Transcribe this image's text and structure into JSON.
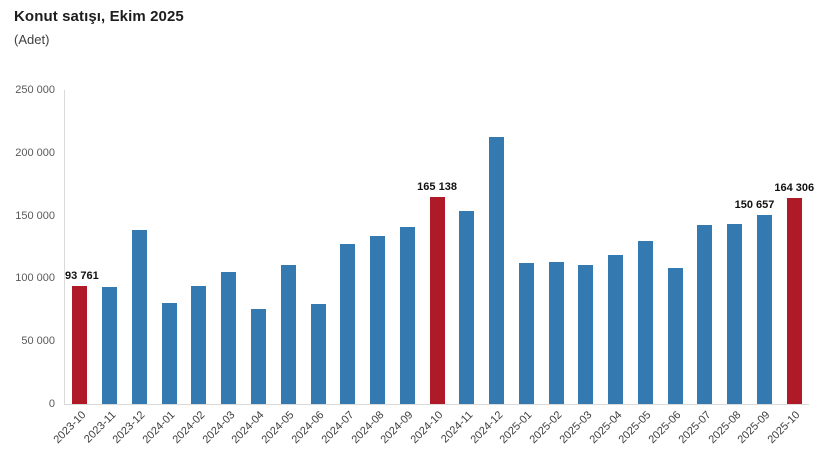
{
  "chart_data": {
    "type": "bar",
    "title": "Konut satışı, Ekim 2025",
    "subtitle": "(Adet)",
    "xlabel": "",
    "ylabel": "",
    "categories": [
      "2023-10",
      "2023-11",
      "2023-12",
      "2024-01",
      "2024-02",
      "2024-03",
      "2024-04",
      "2024-05",
      "2024-06",
      "2024-07",
      "2024-08",
      "2024-09",
      "2024-10",
      "2024-11",
      "2024-12",
      "2025-01",
      "2025-02",
      "2025-03",
      "2025-04",
      "2025-05",
      "2025-06",
      "2025-07",
      "2025-08",
      "2025-09",
      "2025-10"
    ],
    "values": [
      93761,
      93178,
      138577,
      80308,
      93902,
      105476,
      75569,
      110588,
      79313,
      127088,
      134155,
      140919,
      165138,
      153625,
      212637,
      112173,
      112818,
      110795,
      118359,
      130025,
      107957,
      142858,
      143319,
      150657,
      164306
    ],
    "ylim": [
      0,
      250000
    ],
    "ytick_labels": [
      "0",
      "50 000",
      "100 000",
      "150 000",
      "200 000",
      "250 000"
    ],
    "grid": false,
    "legend": "none",
    "bar_color": "#3579b1",
    "highlight_color": "#ae1a27",
    "highlighted_indices": [
      0,
      12,
      24
    ],
    "labeled_points": [
      {
        "index": 0,
        "label": "93 761",
        "dx": 2
      },
      {
        "index": 12,
        "label": "165 138",
        "dx": 0
      },
      {
        "index": 23,
        "label": "150 657",
        "dx": -10
      },
      {
        "index": 24,
        "label": "164 306",
        "dx": 0
      }
    ]
  }
}
